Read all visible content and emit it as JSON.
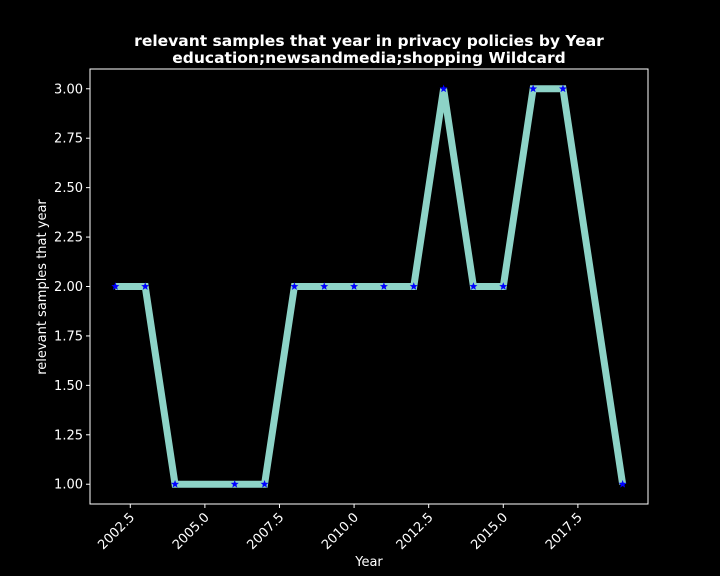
{
  "chart_data": {
    "type": "line",
    "title": "relevant samples that year in privacy policies by Year",
    "subtitle": "education;newsandmedia;shopping Wildcard",
    "xlabel": "Year",
    "ylabel": "relevant samples that year",
    "xlim": [
      2001.15,
      2019.85
    ],
    "ylim": [
      0.9,
      3.1
    ],
    "xticks": [
      2002.5,
      2005.0,
      2007.5,
      2010.0,
      2012.5,
      2015.0,
      2017.5
    ],
    "xtick_labels": [
      "2002.5",
      "2005.0",
      "2007.5",
      "2010.0",
      "2012.5",
      "2015.0",
      "2017.5"
    ],
    "yticks": [
      1.0,
      1.25,
      1.5,
      1.75,
      2.0,
      2.25,
      2.5,
      2.75,
      3.0
    ],
    "ytick_labels": [
      "1.00",
      "1.25",
      "1.50",
      "1.75",
      "2.00",
      "2.25",
      "2.50",
      "2.75",
      "3.00"
    ],
    "grid": false,
    "series": [
      {
        "x": [
          2002,
          2003,
          2004,
          2005,
          2006,
          2007,
          2008,
          2009,
          2010,
          2011,
          2012,
          2013,
          2014,
          2015,
          2016,
          2017,
          2019
        ],
        "y": [
          2,
          2,
          1,
          1,
          1,
          1,
          2,
          2,
          2,
          2,
          2,
          3,
          2,
          2,
          3,
          3,
          1
        ],
        "marker_x": [
          2002,
          2003,
          2004,
          2006,
          2007,
          2008,
          2009,
          2010,
          2011,
          2012,
          2013,
          2014,
          2015,
          2016,
          2017,
          2019
        ],
        "marker_y": [
          2,
          2,
          1,
          1,
          1,
          2,
          2,
          2,
          2,
          2,
          3,
          2,
          2,
          3,
          3,
          1
        ],
        "line_color": "#8dd3c7",
        "marker_color": "#0000ff",
        "marker": "star"
      }
    ],
    "background_color": "#000000",
    "text_color": "#ffffff"
  }
}
